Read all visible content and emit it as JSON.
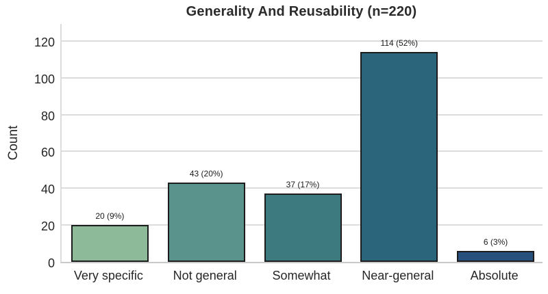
{
  "chart_data": {
    "type": "bar",
    "title": "Generality And Reusability (n=220)",
    "n": 220,
    "xlabel": "",
    "ylabel": "Count",
    "categories": [
      "Very specific",
      "Not general",
      "Somewhat",
      "Near-general",
      "Absolute"
    ],
    "values": [
      20,
      43,
      37,
      114,
      6
    ],
    "bar_labels": [
      "20 (9%)",
      "43 (20%)",
      "37 (17%)",
      "114 (52%)",
      "6 (3%)"
    ],
    "percentages": [
      9,
      20,
      17,
      52,
      3
    ],
    "yticks": [
      0,
      20,
      40,
      60,
      80,
      100,
      120
    ],
    "ylim": [
      0,
      130
    ],
    "grid": "horizontal",
    "legend": "none",
    "bar_colors": [
      "#8dbb99",
      "#5a938c",
      "#3d7a80",
      "#2b657c",
      "#27507c"
    ],
    "bar_edge_color": "#1c1c1c",
    "grid_color": "#dcdcdc",
    "axis_line_color": "#c9c9c9",
    "text_color": "#262626",
    "title_color": "#2b2b2b"
  }
}
